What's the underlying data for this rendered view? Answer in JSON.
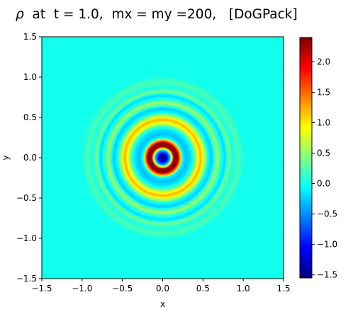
{
  "chart_data": {
    "type": "heatmap",
    "title": {
      "symbol": "ρ",
      "text": "  at  t = 1.0,  mx = my =200,   [DoGPack]"
    },
    "xlabel": "x",
    "ylabel": "y",
    "xlim": [
      -1.5,
      1.5
    ],
    "ylim": [
      -1.5,
      1.5
    ],
    "x_ticks": [
      -1.5,
      -1.0,
      -0.5,
      0.0,
      0.5,
      1.0,
      1.5
    ],
    "x_tick_labels": [
      "−1.5",
      "−1.0",
      "−0.5",
      "0.0",
      "0.5",
      "1.0",
      "1.5"
    ],
    "y_ticks": [
      -1.5,
      -1.0,
      -0.5,
      0.0,
      0.5,
      1.0,
      1.5
    ],
    "y_tick_labels": [
      "−1.5",
      "−1.0",
      "−0.5",
      "0.0",
      "0.5",
      "1.0",
      "1.5"
    ],
    "grid": false,
    "colormap": "jet",
    "colorbar": {
      "min": -1.55,
      "max": 2.4,
      "ticks": [
        -1.5,
        -1.0,
        -0.5,
        0.0,
        0.5,
        1.0,
        1.5,
        2.0
      ],
      "tick_labels": [
        "−1.5",
        "−1.0",
        "−0.5",
        "0.0",
        "0.5",
        "1.0",
        "1.5",
        "2.0"
      ]
    },
    "radial_profile": {
      "r": [
        0.0,
        0.04,
        0.08,
        0.11,
        0.14,
        0.18,
        0.21,
        0.25,
        0.29,
        0.34,
        0.38,
        0.43,
        0.47,
        0.52,
        0.57,
        0.61,
        0.65,
        0.68,
        0.72,
        0.77,
        0.82,
        0.87,
        0.94,
        1.02,
        1.1
      ],
      "value": [
        -1.55,
        -1.3,
        -0.6,
        0.6,
        2.3,
        2.4,
        1.5,
        -0.1,
        -0.3,
        -0.2,
        0.1,
        0.8,
        1.2,
        0.6,
        -0.1,
        -0.25,
        0.2,
        0.55,
        0.1,
        -0.2,
        0.35,
        0.05,
        0.2,
        0.0,
        0.0
      ]
    },
    "background_value": 0.0
  }
}
